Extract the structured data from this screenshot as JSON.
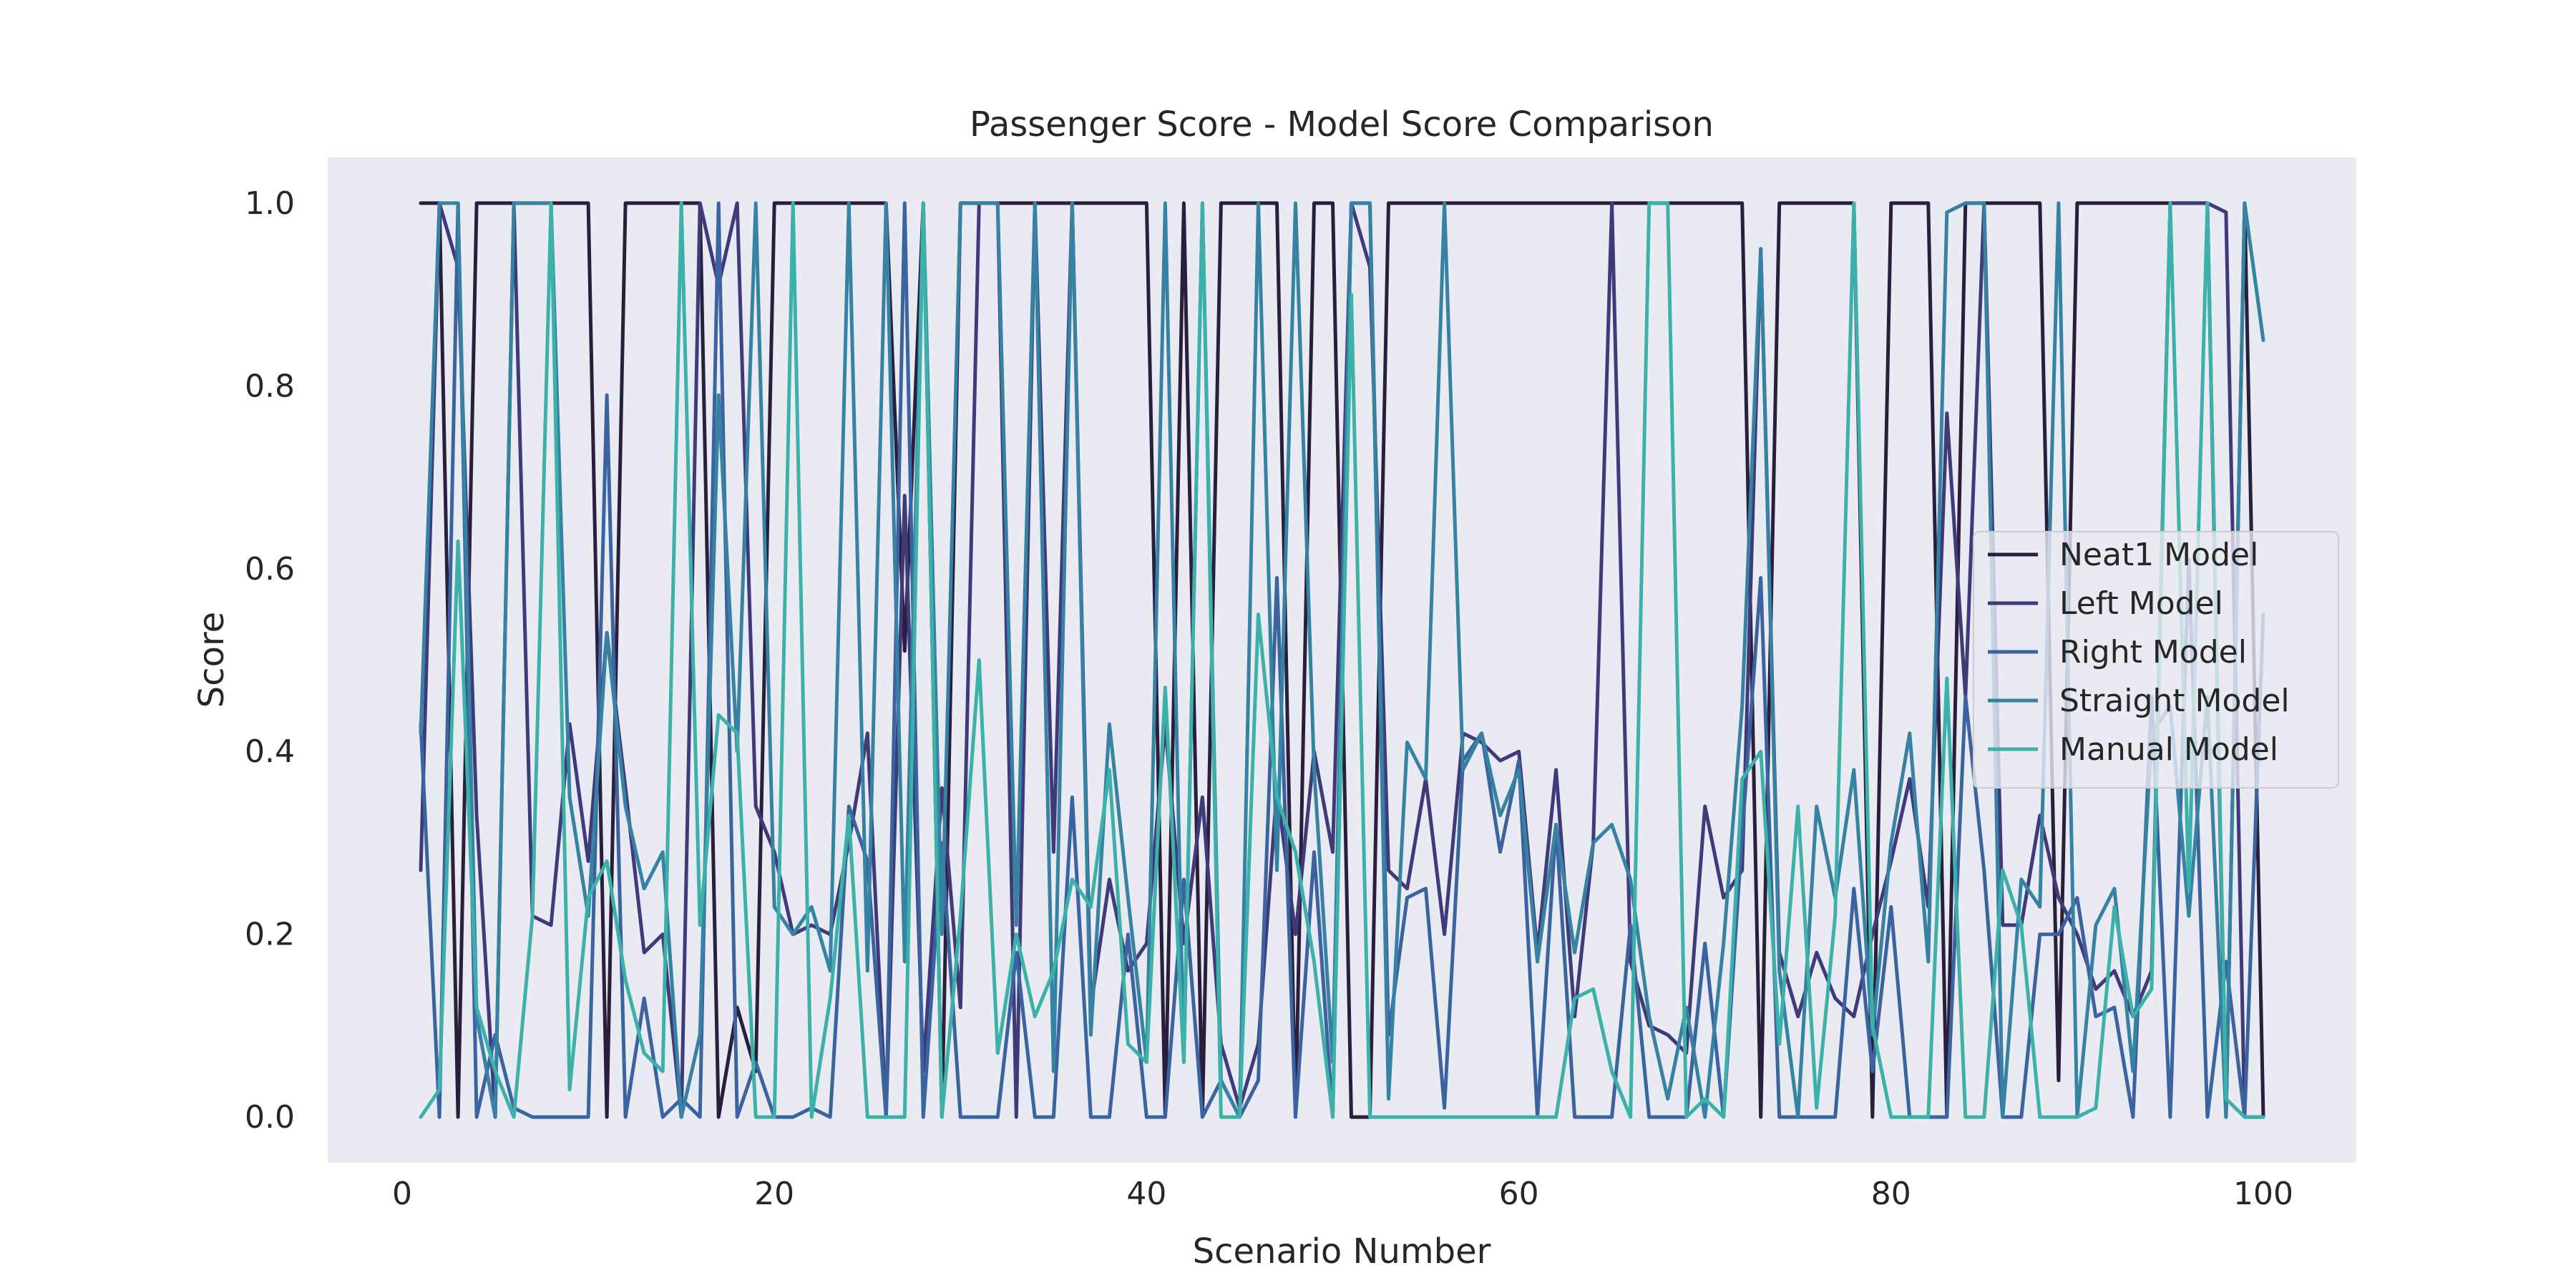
{
  "chart_data": {
    "type": "line",
    "title": "Passenger Score - Model Score Comparison",
    "xlabel": "Scenario Number",
    "ylabel": "Score",
    "xlim": [
      -4,
      105
    ],
    "ylim": [
      -0.05,
      1.05
    ],
    "x_ticks": [
      0,
      20,
      40,
      60,
      80,
      100
    ],
    "y_ticks": [
      0.0,
      0.2,
      0.4,
      0.6,
      0.8,
      1.0
    ],
    "x_tick_labels": [
      "0",
      "20",
      "40",
      "60",
      "80",
      "100"
    ],
    "y_tick_labels": [
      "0.0",
      "0.2",
      "0.4",
      "0.6",
      "0.8",
      "1.0"
    ],
    "grid": false,
    "legend_position": "center-right",
    "x": [
      1,
      2,
      3,
      4,
      5,
      6,
      7,
      8,
      9,
      10,
      11,
      12,
      13,
      14,
      15,
      16,
      17,
      18,
      19,
      20,
      21,
      22,
      23,
      24,
      25,
      26,
      27,
      28,
      29,
      30,
      31,
      32,
      33,
      34,
      35,
      36,
      37,
      38,
      39,
      40,
      41,
      42,
      43,
      44,
      45,
      46,
      47,
      48,
      49,
      50,
      51,
      52,
      53,
      54,
      55,
      56,
      57,
      58,
      59,
      60,
      61,
      62,
      63,
      64,
      65,
      66,
      67,
      68,
      69,
      70,
      71,
      72,
      73,
      74,
      75,
      76,
      77,
      78,
      79,
      80,
      81,
      82,
      83,
      84,
      85,
      86,
      87,
      88,
      89,
      90,
      91,
      92,
      93,
      94,
      95,
      96,
      97,
      98,
      99,
      100
    ],
    "series": [
      {
        "name": "Neat1 Model",
        "color": "#2a1e3d",
        "values": [
          1,
          1,
          0,
          1,
          1,
          1,
          1,
          1,
          1,
          1,
          0,
          1,
          1,
          1,
          1,
          1,
          0,
          0.12,
          0.05,
          1,
          1,
          1,
          1,
          1,
          1,
          1,
          0.51,
          1,
          0,
          1,
          1,
          1,
          1,
          1,
          1,
          1,
          1,
          1,
          1,
          1,
          0,
          1,
          0,
          1,
          1,
          1,
          1,
          0,
          1,
          1,
          0,
          0,
          1,
          1,
          1,
          1,
          1,
          1,
          1,
          1,
          1,
          1,
          1,
          1,
          1,
          1,
          1,
          1,
          1,
          1,
          1,
          1,
          0,
          1,
          1,
          1,
          1,
          1,
          0,
          1,
          1,
          1,
          0,
          1,
          1,
          1,
          1,
          1,
          0.04,
          1,
          1,
          1,
          1,
          1,
          1,
          1,
          1,
          0,
          1,
          0
        ]
      },
      {
        "name": "Left Model",
        "color": "#3f3a7a",
        "values": [
          0.27,
          1,
          0.93,
          0.33,
          0,
          1,
          0.22,
          0.21,
          0.43,
          0.28,
          0.53,
          0.36,
          0.18,
          0.2,
          0,
          1,
          0.91,
          1,
          0.34,
          0.29,
          0.2,
          0.21,
          0.2,
          0.3,
          0.42,
          0,
          0.68,
          0.05,
          0.36,
          0.12,
          1,
          1,
          0,
          1,
          0.29,
          1,
          0.12,
          0.26,
          0.16,
          0.19,
          0.43,
          0.19,
          0.35,
          0.08,
          0.01,
          0.08,
          0.36,
          0.2,
          0.4,
          0.29,
          1,
          0.93,
          0.27,
          0.25,
          0.37,
          0.2,
          0.42,
          0.41,
          0.39,
          0.4,
          0.18,
          0.38,
          0.11,
          0.3,
          1,
          0.17,
          0.1,
          0.09,
          0.07,
          0.34,
          0.24,
          0.27,
          0.95,
          0.18,
          0.11,
          0.18,
          0.13,
          0.11,
          0.2,
          0.28,
          0.37,
          0.23,
          0.77,
          0.46,
          1,
          0.21,
          0.21,
          0.33,
          0.24,
          0.2,
          0.14,
          0.16,
          0.11,
          0.16,
          1,
          1,
          1,
          0.99,
          0,
          0
        ]
      },
      {
        "name": "Right Model",
        "color": "#3b63a0",
        "values": [
          0.43,
          0,
          1,
          0,
          0.09,
          0.01,
          0,
          0,
          0,
          0,
          0.79,
          0,
          0.13,
          0,
          0.02,
          0,
          1,
          0,
          0.06,
          0,
          0,
          0.01,
          0,
          0.34,
          0.28,
          0,
          1,
          0,
          0.3,
          0,
          0,
          0,
          0.18,
          0,
          0,
          0.35,
          0,
          0,
          0.2,
          0,
          0,
          0.26,
          0,
          0.04,
          0,
          0.04,
          0.59,
          0,
          0.29,
          0,
          1,
          1,
          0.09,
          0.24,
          0.25,
          0.01,
          0.39,
          0.42,
          0.29,
          0.39,
          0,
          0.32,
          0,
          0,
          0,
          0.21,
          0,
          0,
          0,
          0.19,
          0,
          0.31,
          0.59,
          0,
          0,
          0,
          0,
          0.25,
          0.05,
          0.23,
          0,
          0,
          0,
          0.46,
          0.27,
          0,
          0,
          0.2,
          0.2,
          0.24,
          0.11,
          0.12,
          0,
          0.46,
          0,
          0.61,
          0,
          0.17,
          0,
          0.55
        ]
      },
      {
        "name": "Straight Model",
        "color": "#3582a3",
        "values": [
          0.42,
          1,
          1,
          0.11,
          0,
          1,
          1,
          1,
          0.35,
          0.22,
          0.53,
          0.34,
          0.25,
          0.29,
          0,
          0.09,
          0.79,
          0.4,
          1,
          0.23,
          0.2,
          0.23,
          0.16,
          1,
          0.16,
          1,
          0.17,
          1,
          0.2,
          1,
          1,
          1,
          0.21,
          1,
          0.05,
          1,
          0.09,
          0.43,
          0.24,
          0.06,
          1,
          0.06,
          1,
          0.04,
          0,
          1,
          0.27,
          1,
          0.38,
          0.06,
          1,
          1,
          0.02,
          0.41,
          0.37,
          1,
          0.38,
          0.42,
          0.33,
          0.38,
          0.17,
          0.32,
          0.18,
          0.3,
          0.32,
          0.26,
          0.11,
          0.02,
          0.12,
          0,
          0.19,
          0.45,
          0.95,
          0.16,
          0,
          0.34,
          0.24,
          0.38,
          0.09,
          0.3,
          0.42,
          0.17,
          0.99,
          1,
          1,
          0,
          0.26,
          0.23,
          1,
          0,
          0.21,
          0.25,
          0.05,
          0.42,
          0.45,
          0.22,
          0.46,
          0,
          1,
          0.85
        ]
      },
      {
        "name": "Manual Model",
        "color": "#3cb1a9",
        "values": [
          0,
          0.03,
          0.63,
          0.12,
          0.05,
          0,
          0.22,
          1,
          0.03,
          0.24,
          0.28,
          0.15,
          0.07,
          0.05,
          1,
          0.21,
          0.44,
          0.42,
          0,
          0,
          1,
          0,
          0.13,
          0.33,
          0,
          0,
          0,
          1,
          0,
          0.22,
          0.5,
          0.07,
          0.2,
          0.11,
          0.16,
          0.26,
          0.23,
          0.38,
          0.08,
          0.06,
          0.47,
          0.06,
          1,
          0,
          0,
          0.55,
          0.35,
          0.29,
          0.17,
          0,
          0.9,
          0,
          0,
          0,
          0,
          0,
          0,
          0,
          0,
          0,
          0,
          0,
          0.13,
          0.14,
          0.05,
          0,
          1,
          1,
          0,
          0.02,
          0,
          0.37,
          0.4,
          0.08,
          0.34,
          0.01,
          0.22,
          1,
          0.1,
          0,
          0,
          0,
          0.48,
          0,
          0,
          0.27,
          0.21,
          0,
          0,
          0,
          0.01,
          0.23,
          0.11,
          0.14,
          1,
          0.25,
          1,
          0.02,
          0,
          0
        ]
      }
    ]
  }
}
